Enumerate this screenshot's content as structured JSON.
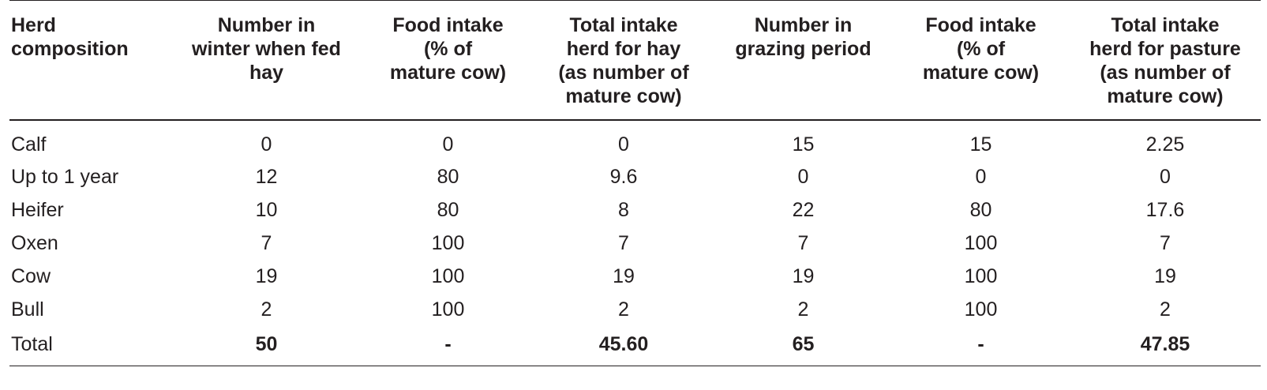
{
  "table": {
    "headers": [
      "Herd composition",
      "Number in winter when fed hay",
      "Food intake (% of mature cow)",
      "Total intake herd for hay (as number of mature cow)",
      "Number in grazing period",
      "Food intake (% of mature cow)",
      "Total intake herd for pasture (as number of mature cow)"
    ],
    "header_lines": [
      [
        "Herd",
        "composition"
      ],
      [
        "Number in",
        "winter when fed",
        "hay"
      ],
      [
        "Food intake",
        "(% of",
        "mature cow)"
      ],
      [
        "Total intake",
        "herd for hay",
        "(as number of",
        "mature cow)"
      ],
      [
        "Number in",
        "grazing period"
      ],
      [
        "Food intake",
        "(% of",
        "mature cow)"
      ],
      [
        "Total intake",
        "herd for pasture",
        "(as number of",
        "mature cow)"
      ]
    ],
    "rows": [
      [
        "Calf",
        "0",
        "0",
        "0",
        "15",
        "15",
        "2.25"
      ],
      [
        "Up to 1 year",
        "12",
        "80",
        "9.6",
        "0",
        "0",
        "0"
      ],
      [
        "Heifer",
        "10",
        "80",
        "8",
        "22",
        "80",
        "17.6"
      ],
      [
        "Oxen",
        "7",
        "100",
        "7",
        "7",
        "100",
        "7"
      ],
      [
        "Cow",
        "19",
        "100",
        "19",
        "19",
        "100",
        "19"
      ],
      [
        "Bull",
        "2",
        "100",
        "2",
        "2",
        "100",
        "2"
      ],
      [
        "Total",
        "50",
        "-",
        "45.60",
        "65",
        "-",
        "47.85"
      ]
    ]
  }
}
